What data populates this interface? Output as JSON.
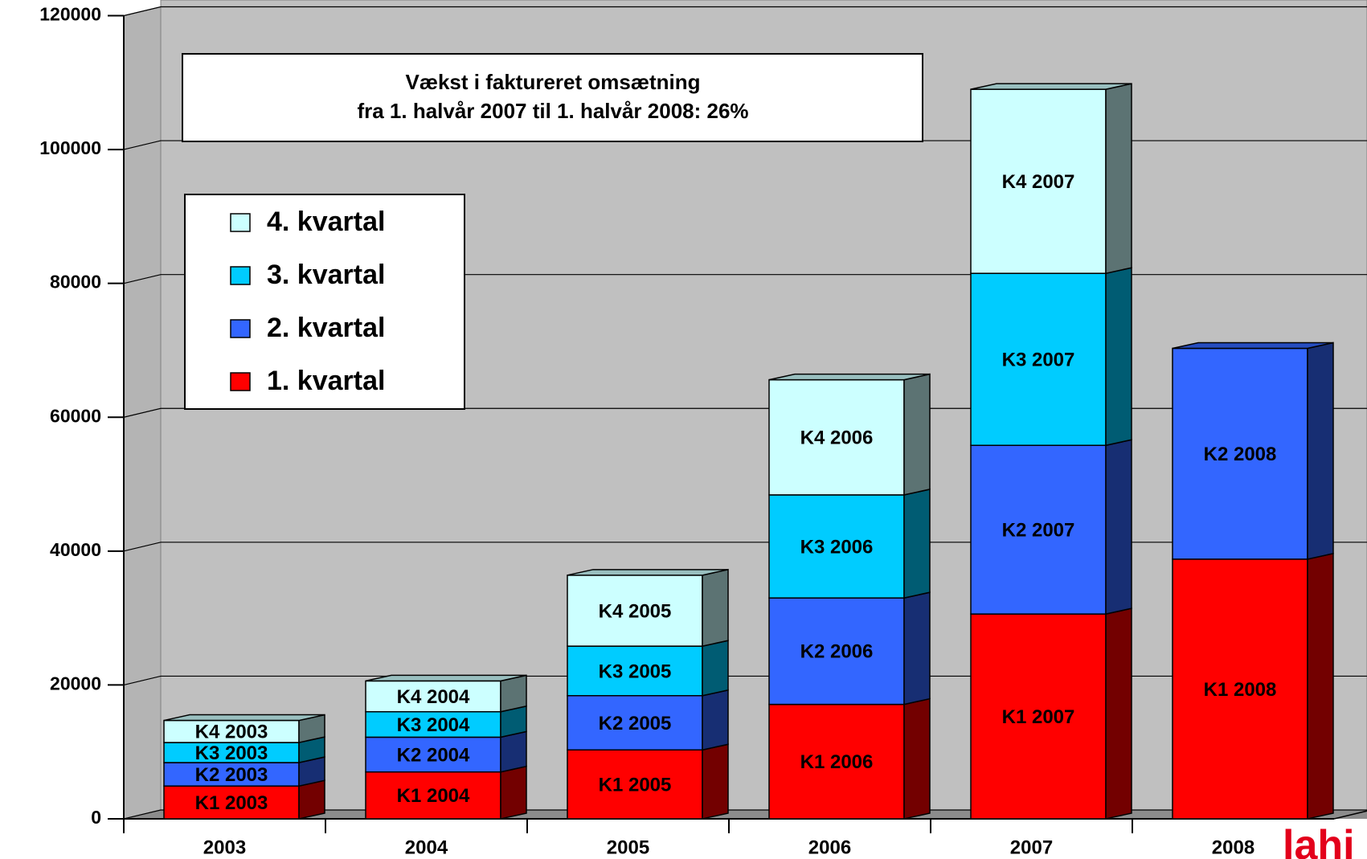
{
  "chart_data": {
    "type": "bar",
    "stacked": true,
    "three_d": true,
    "annotation": [
      "Vækst i faktureret omsætning",
      "fra 1. halvår 2007 til 1. halvår 2008: 26%"
    ],
    "categories": [
      "2003",
      "2004",
      "2005",
      "2006",
      "2007",
      "2008"
    ],
    "series": [
      {
        "name": "1. kvartal",
        "color": "#ff0000",
        "values": [
          4900,
          7000,
          10300,
          17100,
          30600,
          38800
        ],
        "value_labels": [
          "K1 2003",
          "K1 2004",
          "K1 2005",
          "K1 2006",
          "K1 2007",
          "K1 2008"
        ]
      },
      {
        "name": "2. kvartal",
        "color": "#3366ff",
        "values": [
          3500,
          5200,
          8100,
          15900,
          25200,
          31500
        ],
        "value_labels": [
          "K2 2003",
          "K2 2004",
          "K2 2005",
          "K2 2006",
          "K2 2007",
          "K2 2008"
        ]
      },
      {
        "name": "3. kvartal",
        "color": "#00ccff",
        "values": [
          3000,
          3800,
          7400,
          15400,
          25700,
          null
        ],
        "value_labels": [
          "K3 2003",
          "K3 2004",
          "K3 2005",
          "K3 2006",
          "K3 2007",
          null
        ]
      },
      {
        "name": "4. kvartal",
        "color": "#ccffff",
        "values": [
          3300,
          4600,
          10600,
          17200,
          27500,
          null
        ],
        "value_labels": [
          "K4 2003",
          "K4 2004",
          "K4 2005",
          "K4 2006",
          "K4 2007",
          null
        ]
      }
    ],
    "ylim": [
      0,
      120000
    ],
    "yticks": [
      0,
      20000,
      40000,
      60000,
      80000,
      100000,
      120000
    ],
    "grid": true,
    "legend": "upper left",
    "logo": "lahi"
  }
}
